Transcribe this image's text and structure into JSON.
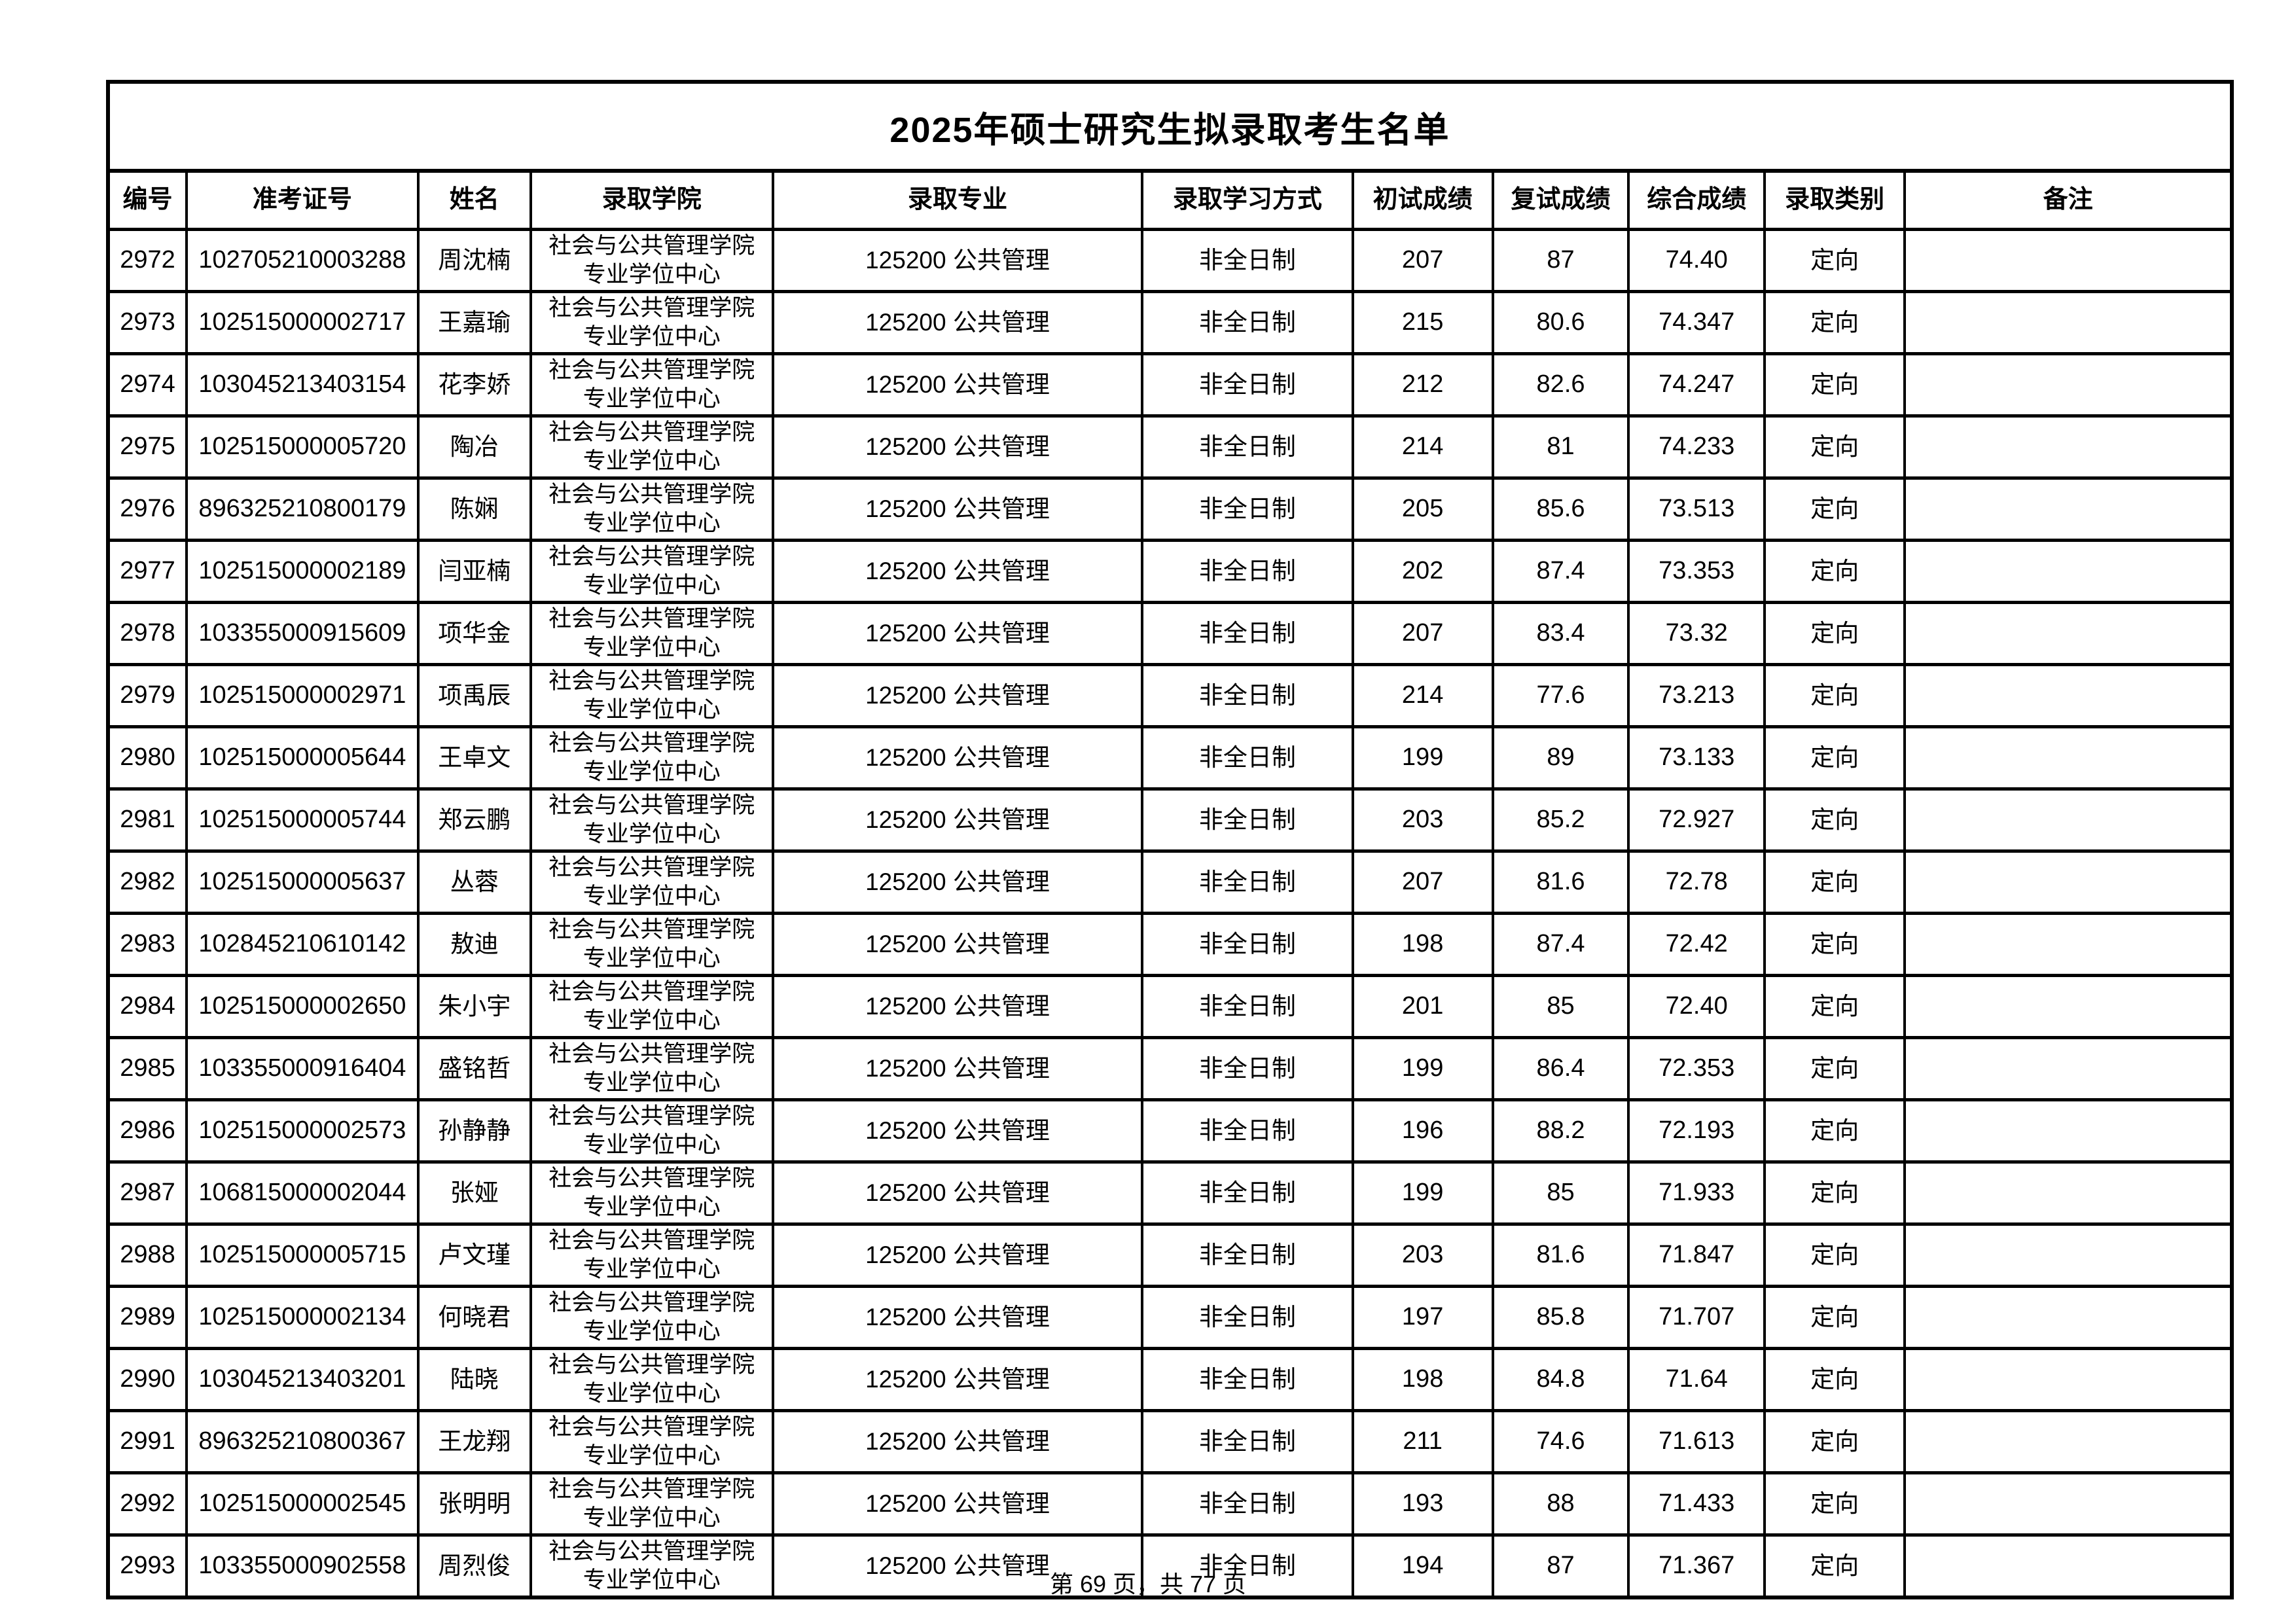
{
  "page": {
    "title": "2025年硕士研究生拟录取考生名单",
    "footer": "第 69 页，共 77 页"
  },
  "table": {
    "columns": [
      "编号",
      "准考证号",
      "姓名",
      "录取学院",
      "录取专业",
      "录取学习方式",
      "初试成绩",
      "复试成绩",
      "综合成绩",
      "录取类别",
      "备注"
    ],
    "rows": [
      [
        "2972",
        "102705210003288",
        "周沈楠",
        "社会与公共管理学院专业学位中心",
        "125200 公共管理",
        "非全日制",
        "207",
        "87",
        "74.40",
        "定向",
        ""
      ],
      [
        "2973",
        "102515000002717",
        "王嘉瑜",
        "社会与公共管理学院专业学位中心",
        "125200 公共管理",
        "非全日制",
        "215",
        "80.6",
        "74.347",
        "定向",
        ""
      ],
      [
        "2974",
        "103045213403154",
        "花李娇",
        "社会与公共管理学院专业学位中心",
        "125200 公共管理",
        "非全日制",
        "212",
        "82.6",
        "74.247",
        "定向",
        ""
      ],
      [
        "2975",
        "102515000005720",
        "陶冶",
        "社会与公共管理学院专业学位中心",
        "125200 公共管理",
        "非全日制",
        "214",
        "81",
        "74.233",
        "定向",
        ""
      ],
      [
        "2976",
        "896325210800179",
        "陈娴",
        "社会与公共管理学院专业学位中心",
        "125200 公共管理",
        "非全日制",
        "205",
        "85.6",
        "73.513",
        "定向",
        ""
      ],
      [
        "2977",
        "102515000002189",
        "闫亚楠",
        "社会与公共管理学院专业学位中心",
        "125200 公共管理",
        "非全日制",
        "202",
        "87.4",
        "73.353",
        "定向",
        ""
      ],
      [
        "2978",
        "103355000915609",
        "项华金",
        "社会与公共管理学院专业学位中心",
        "125200 公共管理",
        "非全日制",
        "207",
        "83.4",
        "73.32",
        "定向",
        ""
      ],
      [
        "2979",
        "102515000002971",
        "项禹辰",
        "社会与公共管理学院专业学位中心",
        "125200 公共管理",
        "非全日制",
        "214",
        "77.6",
        "73.213",
        "定向",
        ""
      ],
      [
        "2980",
        "102515000005644",
        "王卓文",
        "社会与公共管理学院专业学位中心",
        "125200 公共管理",
        "非全日制",
        "199",
        "89",
        "73.133",
        "定向",
        ""
      ],
      [
        "2981",
        "102515000005744",
        "郑云鹏",
        "社会与公共管理学院专业学位中心",
        "125200 公共管理",
        "非全日制",
        "203",
        "85.2",
        "72.927",
        "定向",
        ""
      ],
      [
        "2982",
        "102515000005637",
        "丛蓉",
        "社会与公共管理学院专业学位中心",
        "125200 公共管理",
        "非全日制",
        "207",
        "81.6",
        "72.78",
        "定向",
        ""
      ],
      [
        "2983",
        "102845210610142",
        "敖迪",
        "社会与公共管理学院专业学位中心",
        "125200 公共管理",
        "非全日制",
        "198",
        "87.4",
        "72.42",
        "定向",
        ""
      ],
      [
        "2984",
        "102515000002650",
        "朱小宇",
        "社会与公共管理学院专业学位中心",
        "125200 公共管理",
        "非全日制",
        "201",
        "85",
        "72.40",
        "定向",
        ""
      ],
      [
        "2985",
        "103355000916404",
        "盛铭哲",
        "社会与公共管理学院专业学位中心",
        "125200 公共管理",
        "非全日制",
        "199",
        "86.4",
        "72.353",
        "定向",
        ""
      ],
      [
        "2986",
        "102515000002573",
        "孙静静",
        "社会与公共管理学院专业学位中心",
        "125200 公共管理",
        "非全日制",
        "196",
        "88.2",
        "72.193",
        "定向",
        ""
      ],
      [
        "2987",
        "106815000002044",
        "张娅",
        "社会与公共管理学院专业学位中心",
        "125200 公共管理",
        "非全日制",
        "199",
        "85",
        "71.933",
        "定向",
        ""
      ],
      [
        "2988",
        "102515000005715",
        "卢文瑾",
        "社会与公共管理学院专业学位中心",
        "125200 公共管理",
        "非全日制",
        "203",
        "81.6",
        "71.847",
        "定向",
        ""
      ],
      [
        "2989",
        "102515000002134",
        "何晓君",
        "社会与公共管理学院专业学位中心",
        "125200 公共管理",
        "非全日制",
        "197",
        "85.8",
        "71.707",
        "定向",
        ""
      ],
      [
        "2990",
        "103045213403201",
        "陆晓",
        "社会与公共管理学院专业学位中心",
        "125200 公共管理",
        "非全日制",
        "198",
        "84.8",
        "71.64",
        "定向",
        ""
      ],
      [
        "2991",
        "896325210800367",
        "王龙翔",
        "社会与公共管理学院专业学位中心",
        "125200 公共管理",
        "非全日制",
        "211",
        "74.6",
        "71.613",
        "定向",
        ""
      ],
      [
        "2992",
        "102515000002545",
        "张明明",
        "社会与公共管理学院专业学位中心",
        "125200 公共管理",
        "非全日制",
        "193",
        "88",
        "71.433",
        "定向",
        ""
      ],
      [
        "2993",
        "103355000902558",
        "周烈俊",
        "社会与公共管理学院专业学位中心",
        "125200 公共管理",
        "非全日制",
        "194",
        "87",
        "71.367",
        "定向",
        ""
      ]
    ]
  }
}
